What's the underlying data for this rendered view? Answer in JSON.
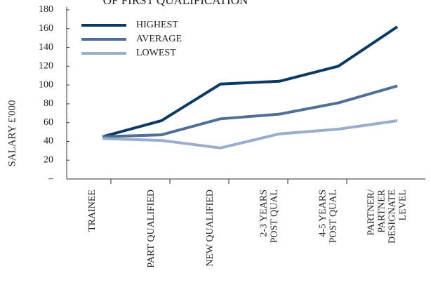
{
  "chart_data": {
    "type": "line",
    "title": "OF FIRST QUALIFICATION",
    "y_label": "SALARY £'000",
    "categories": [
      "TRAINEE",
      "PART QUALIFIED",
      "NEW QUALIFIED",
      "2-3 YEARS\nPOST QUAL",
      "4-5 YEARS\nPOST QUAL",
      "PARTNER/\nPARTNER\nDESIGNATE\nLEVEL"
    ],
    "series": [
      {
        "name": "HIGHEST",
        "color": "#0d3a63",
        "values": [
          45,
          62,
          101,
          104,
          120,
          162
        ]
      },
      {
        "name": "AVERAGE",
        "color": "#4f6f96",
        "values": [
          45,
          47,
          64,
          69,
          81,
          99
        ]
      },
      {
        "name": "LOWEST",
        "color": "#9aaecb",
        "values": [
          43,
          41,
          33,
          48,
          53,
          62
        ]
      }
    ],
    "ylim": [
      0,
      180
    ],
    "yticks": [
      {
        "value": 0,
        "label": "–"
      },
      20,
      40,
      60,
      80,
      100,
      120,
      140,
      160,
      180
    ],
    "legend": "top-left"
  }
}
